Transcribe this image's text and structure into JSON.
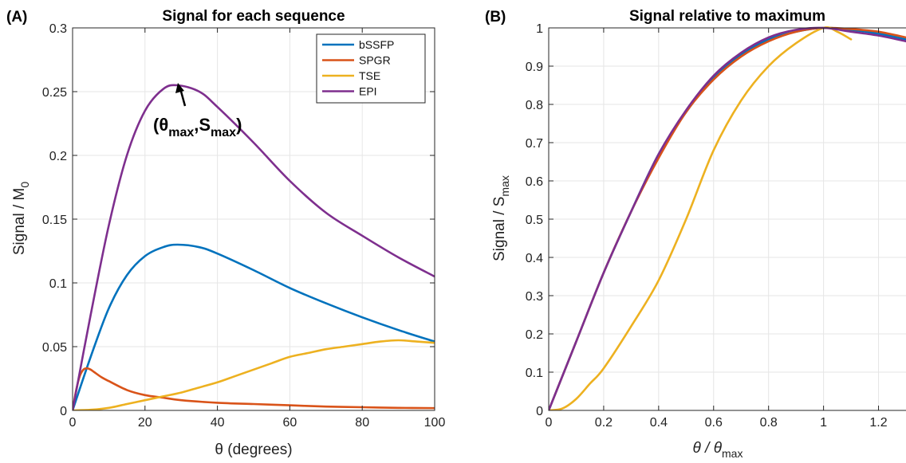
{
  "chart_data": [
    {
      "panel_label": "(A)",
      "type": "line",
      "title": "Signal for each sequence",
      "xlabel": "θ (degrees)",
      "ylabel": "Signal / M",
      "ylabel_sub": "0",
      "xlim": [
        0,
        100
      ],
      "ylim": [
        0,
        0.3
      ],
      "xticks": [
        0,
        20,
        40,
        60,
        80,
        100
      ],
      "yticks": [
        0,
        0.05,
        0.1,
        0.15,
        0.2,
        0.25,
        0.3
      ],
      "xtick_labels": [
        "0",
        "20",
        "40",
        "60",
        "80",
        "100"
      ],
      "ytick_labels": [
        "0",
        "0.05",
        "0.1",
        "0.15",
        "0.2",
        "0.25",
        "0.3"
      ],
      "grid": true,
      "legend": "top-right",
      "annotation": {
        "open": "(θ",
        "sub1": "max",
        "mid": ",S",
        "sub2": "max",
        "close": ")",
        "x": 29,
        "y": 0.255
      },
      "series": [
        {
          "name": "bSSFP",
          "color": "#0072BD",
          "x": [
            0,
            5,
            10,
            15,
            20,
            25,
            29,
            35,
            40,
            50,
            60,
            70,
            80,
            90,
            100
          ],
          "y": [
            0,
            0.042,
            0.08,
            0.106,
            0.121,
            0.128,
            0.13,
            0.128,
            0.123,
            0.11,
            0.096,
            0.084,
            0.073,
            0.063,
            0.054
          ]
        },
        {
          "name": "SPGR",
          "color": "#D95319",
          "x": [
            0,
            1,
            2,
            3,
            4,
            5,
            6,
            8,
            10,
            15,
            20,
            25,
            30,
            40,
            50,
            60,
            70,
            80,
            90,
            100
          ],
          "y": [
            0,
            0.016,
            0.027,
            0.032,
            0.033,
            0.032,
            0.03,
            0.026,
            0.023,
            0.016,
            0.012,
            0.01,
            0.008,
            0.006,
            0.005,
            0.004,
            0.003,
            0.0025,
            0.002,
            0.0018
          ]
        },
        {
          "name": "TSE",
          "color": "#EDB120",
          "x": [
            0,
            5,
            10,
            15,
            20,
            25,
            30,
            35,
            40,
            45,
            50,
            55,
            60,
            65,
            70,
            75,
            80,
            85,
            90,
            95,
            100
          ],
          "y": [
            0,
            0.0005,
            0.002,
            0.005,
            0.008,
            0.011,
            0.014,
            0.018,
            0.022,
            0.027,
            0.032,
            0.037,
            0.042,
            0.045,
            0.048,
            0.05,
            0.052,
            0.054,
            0.055,
            0.054,
            0.053
          ]
        },
        {
          "name": "EPI",
          "color": "#7E2F8E",
          "x": [
            0,
            5,
            10,
            15,
            20,
            25,
            29,
            35,
            40,
            50,
            60,
            70,
            80,
            90,
            100
          ],
          "y": [
            0,
            0.075,
            0.145,
            0.2,
            0.235,
            0.252,
            0.255,
            0.25,
            0.238,
            0.21,
            0.18,
            0.155,
            0.137,
            0.12,
            0.105
          ]
        }
      ]
    },
    {
      "panel_label": "(B)",
      "type": "line",
      "title": "Signal relative to maximum",
      "xlabel": "θ / θ",
      "xlabel_sub": "max",
      "ylabel": "Signal / S",
      "ylabel_sub": "max",
      "xlim": [
        0,
        1.3
      ],
      "ylim": [
        0,
        1
      ],
      "xticks": [
        0,
        0.2,
        0.4,
        0.6,
        0.8,
        1,
        1.2
      ],
      "yticks": [
        0,
        0.1,
        0.2,
        0.3,
        0.4,
        0.5,
        0.6,
        0.7,
        0.8,
        0.9,
        1
      ],
      "xtick_labels": [
        "0",
        "0.2",
        "0.4",
        "0.6",
        "0.8",
        "1",
        "1.2"
      ],
      "ytick_labels": [
        "0",
        "0.1",
        "0.2",
        "0.3",
        "0.4",
        "0.5",
        "0.6",
        "0.7",
        "0.8",
        "0.9",
        "1"
      ],
      "grid": true,
      "series": [
        {
          "color": "#0072BD",
          "x": [
            0,
            0.1,
            0.2,
            0.3,
            0.4,
            0.5,
            0.6,
            0.7,
            0.8,
            0.9,
            1.0,
            1.1,
            1.2,
            1.3
          ],
          "y": [
            0,
            0.18,
            0.36,
            0.52,
            0.67,
            0.78,
            0.87,
            0.93,
            0.97,
            0.99,
            1.0,
            0.995,
            0.985,
            0.97
          ]
        },
        {
          "color": "#D95319",
          "x": [
            0,
            0.1,
            0.2,
            0.3,
            0.4,
            0.5,
            0.6,
            0.7,
            0.8,
            0.9,
            1.0,
            1.1,
            1.2,
            1.3
          ],
          "y": [
            0,
            0.18,
            0.36,
            0.52,
            0.66,
            0.78,
            0.865,
            0.925,
            0.965,
            0.99,
            1.0,
            0.997,
            0.99,
            0.975
          ]
        },
        {
          "color": "#EDB120",
          "x": [
            0,
            0.05,
            0.1,
            0.15,
            0.2,
            0.3,
            0.4,
            0.5,
            0.6,
            0.7,
            0.8,
            0.9,
            1.0,
            1.05,
            1.1
          ],
          "y": [
            0,
            0.005,
            0.03,
            0.07,
            0.11,
            0.22,
            0.34,
            0.5,
            0.68,
            0.81,
            0.9,
            0.96,
            1.0,
            0.99,
            0.97
          ]
        },
        {
          "color": "#7E2F8E",
          "x": [
            0,
            0.1,
            0.2,
            0.3,
            0.4,
            0.5,
            0.6,
            0.7,
            0.8,
            0.9,
            1.0,
            1.1,
            1.2,
            1.3
          ],
          "y": [
            0,
            0.18,
            0.36,
            0.52,
            0.67,
            0.785,
            0.875,
            0.935,
            0.975,
            0.995,
            1.0,
            0.99,
            0.98,
            0.965
          ]
        }
      ]
    }
  ]
}
